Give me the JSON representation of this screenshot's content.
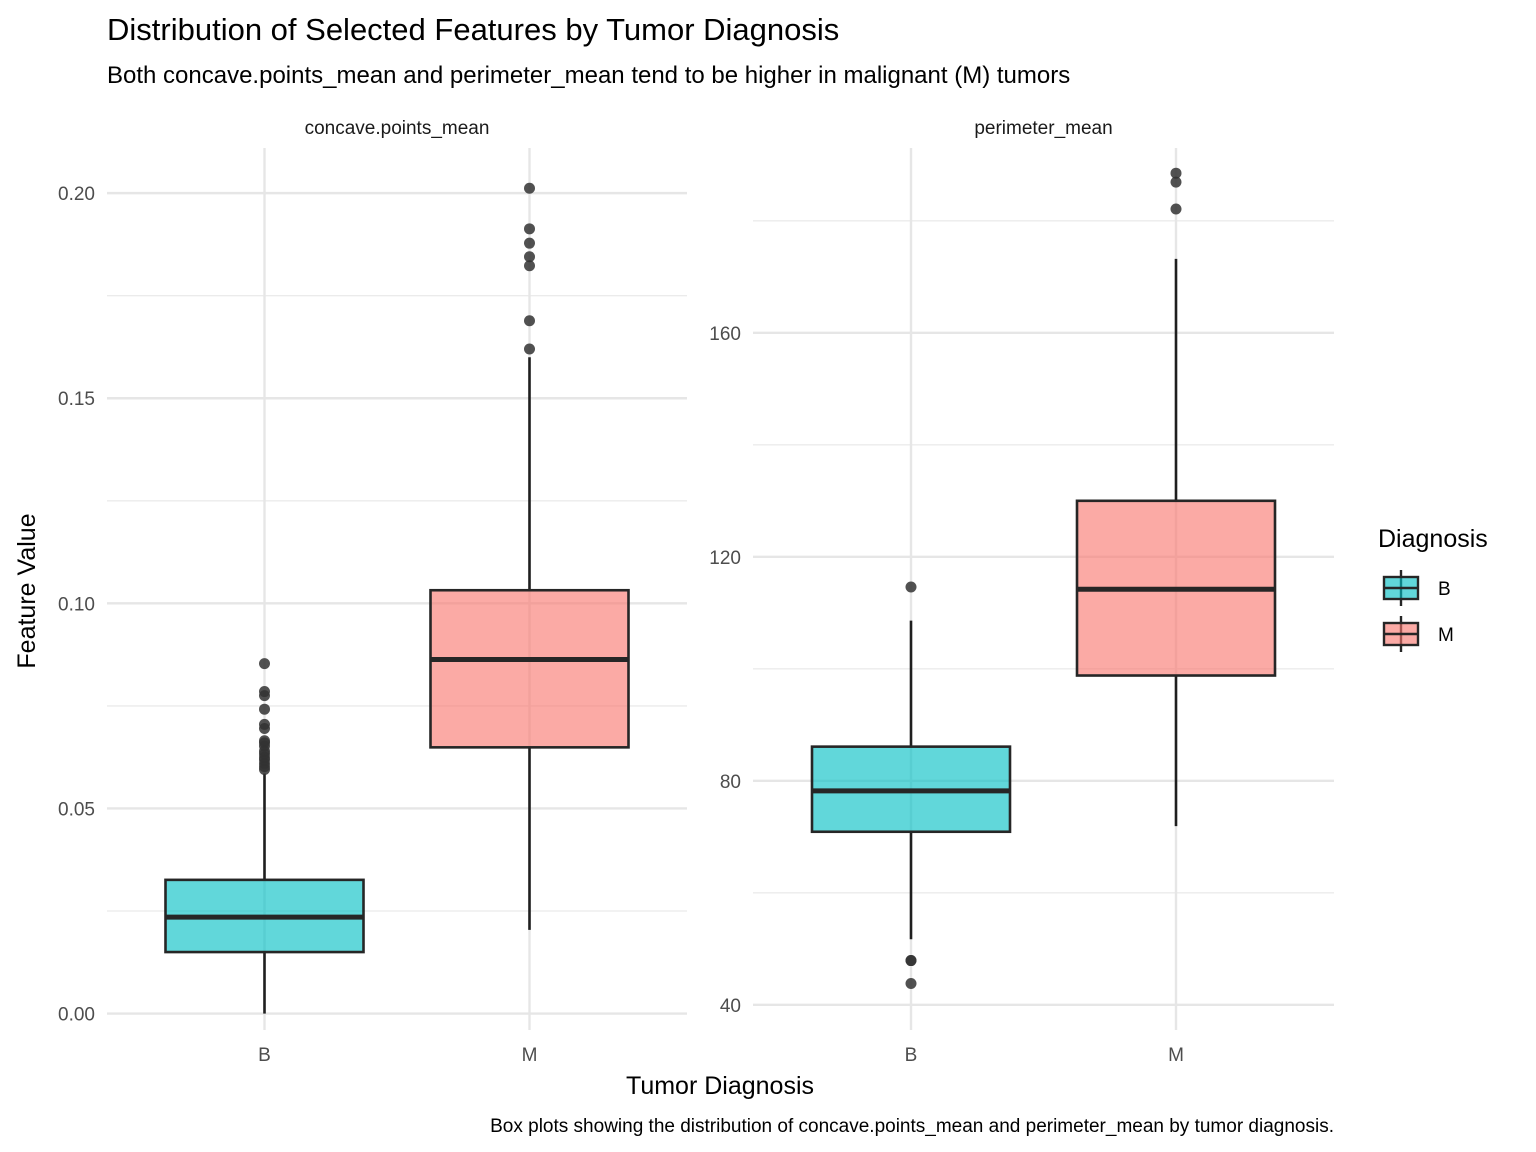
{
  "chart_data": {
    "type": "box",
    "title": "Distribution of Selected Features by Tumor Diagnosis",
    "subtitle": "Both concave.points_mean and perimeter_mean tend to be higher in malignant (M) tumors",
    "caption": "Box plots showing the distribution of concave.points_mean and perimeter_mean by tumor diagnosis.",
    "xlabel": "Tumor Diagnosis",
    "ylabel": "Feature Value",
    "categories": [
      "B",
      "M"
    ],
    "legend": {
      "title": "Diagnosis",
      "position": "right",
      "entries": [
        {
          "label": "B",
          "color": "#00BFC4"
        },
        {
          "label": "M",
          "color": "#F8766D"
        }
      ]
    },
    "grid": true,
    "facets": [
      {
        "name": "concave.points_mean",
        "ylim": [
          -0.004,
          0.211
        ],
        "yticks": [
          0.0,
          0.05,
          0.1,
          0.15,
          0.2
        ],
        "ytick_labels": [
          "0.00",
          "0.05",
          "0.10",
          "0.15",
          "0.20"
        ],
        "boxes": [
          {
            "category": "B",
            "min": 0.0,
            "q1": 0.015,
            "median": 0.0235,
            "q3": 0.0326,
            "max": 0.0585,
            "outliers": [
              0.0595,
              0.0602,
              0.061,
              0.0618,
              0.0625,
              0.0633,
              0.064,
              0.0652,
              0.066,
              0.0665,
              0.0695,
              0.0705,
              0.0742,
              0.0775,
              0.0785,
              0.0853
            ]
          },
          {
            "category": "M",
            "min": 0.0204,
            "q1": 0.0649,
            "median": 0.0863,
            "q3": 0.1032,
            "max": 0.16,
            "outliers": [
              0.162,
              0.1689,
              0.1823,
              0.1845,
              0.1878,
              0.1913,
              0.2012
            ]
          }
        ]
      },
      {
        "name": "perimeter_mean",
        "ylim": [
          35.5,
          193
        ],
        "yticks": [
          40,
          80,
          120,
          160
        ],
        "ytick_labels": [
          "40",
          "80",
          "120",
          "160"
        ],
        "boxes": [
          {
            "category": "B",
            "min": 51.7,
            "q1": 70.9,
            "median": 78.2,
            "q3": 86.1,
            "max": 108.6,
            "outliers": [
              114.6,
              47.9,
              47.9,
              43.8
            ]
          },
          {
            "category": "M",
            "min": 71.9,
            "q1": 98.8,
            "median": 114.2,
            "q3": 130.0,
            "max": 173.2,
            "outliers": [
              182.1,
              186.9,
              188.5
            ]
          }
        ]
      }
    ]
  }
}
